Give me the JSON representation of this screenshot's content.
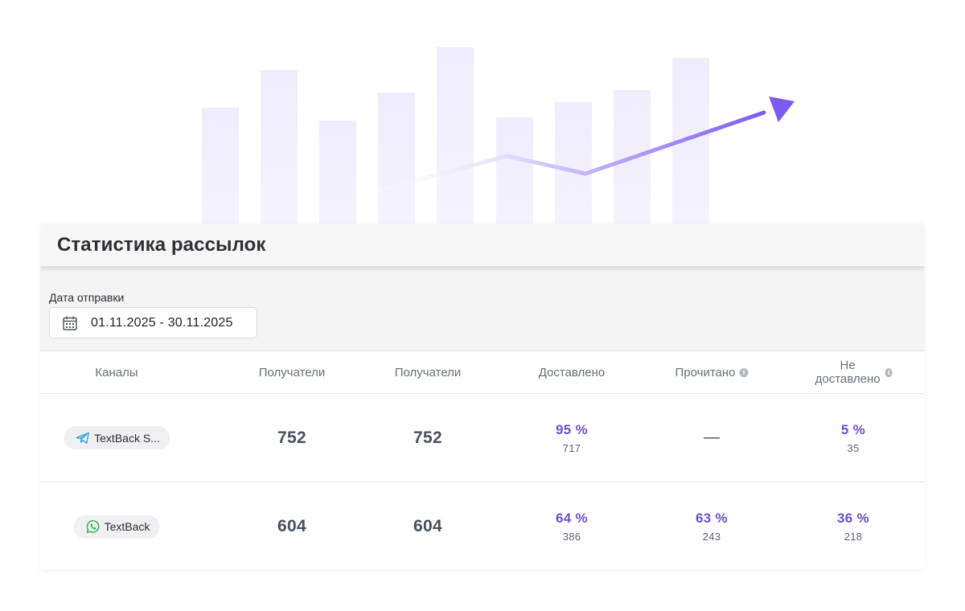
{
  "page": {
    "title": "Статистика рассылок",
    "accent_color": "#6a4fd6"
  },
  "filters": {
    "date_label": "Дата отправки",
    "date_value": "01.11.2025 - 30.11.2025",
    "calendar_icon": "calendar-icon"
  },
  "table": {
    "headers": [
      "Каналы",
      "Получатели",
      "Получатели",
      "Доставлено",
      "Прочитано",
      "Не доставлено"
    ],
    "rows": [
      {
        "channel": "TextBack S...",
        "channel_icon": "telegram-icon",
        "recipients_1": "752",
        "recipients_2": "752",
        "delivered_pct": "95 %",
        "delivered_count": "717",
        "read_pct": "—",
        "read_count": "",
        "not_delivered_pct": "5 %",
        "not_delivered_count": "35"
      },
      {
        "channel": "TextBack",
        "channel_icon": "whatsapp-icon",
        "recipients_1": "604",
        "recipients_2": "604",
        "delivered_pct": "64 %",
        "delivered_count": "386",
        "read_pct": "63 %",
        "read_count": "243",
        "not_delivered_pct": "36 %",
        "not_delivered_count": "218"
      }
    ]
  }
}
